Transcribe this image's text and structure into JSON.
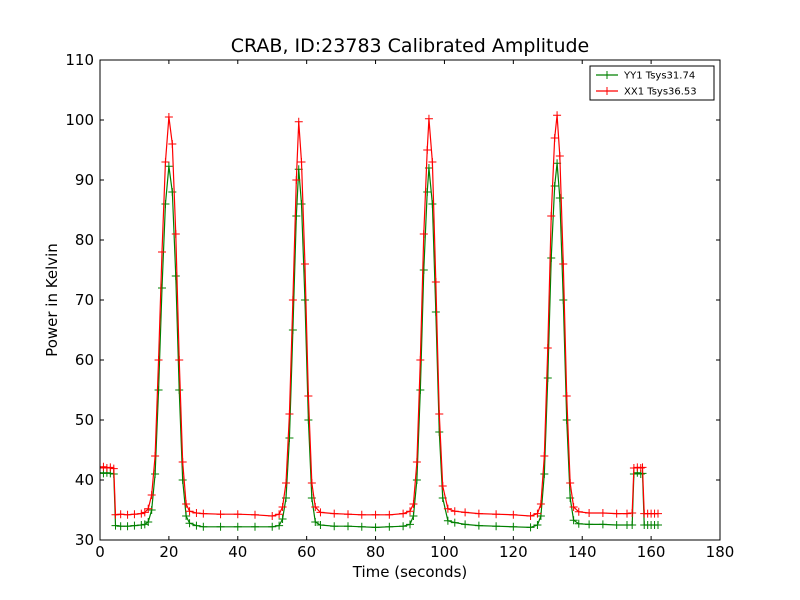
{
  "chart_data": {
    "type": "line",
    "title": "CRAB, ID:23783 Calibrated Amplitude",
    "xlabel": "Time (seconds)",
    "ylabel": "Power in Kelvin",
    "xlim": [
      0,
      180
    ],
    "ylim": [
      30,
      110
    ],
    "xticks": [
      0,
      20,
      40,
      60,
      80,
      100,
      120,
      140,
      160,
      180
    ],
    "yticks": [
      30,
      40,
      50,
      60,
      70,
      80,
      90,
      100,
      110
    ],
    "grid": false,
    "legend_position": "top-right",
    "marker": "+",
    "series": [
      {
        "name": "YY1 Tsys31.74",
        "color": "#008000",
        "points": [
          [
            0,
            41.2
          ],
          [
            1,
            41.1
          ],
          [
            2,
            41.2
          ],
          [
            3,
            41.1
          ],
          [
            4,
            41.0
          ],
          [
            4.5,
            32.4
          ],
          [
            6,
            32.3
          ],
          [
            8,
            32.3
          ],
          [
            10,
            32.4
          ],
          [
            12,
            32.5
          ],
          [
            13,
            32.6
          ],
          [
            14,
            33.0
          ],
          [
            15,
            35.0
          ],
          [
            16,
            41.0
          ],
          [
            17,
            55.0
          ],
          [
            18,
            72.0
          ],
          [
            19,
            86.0
          ],
          [
            20,
            92.3
          ],
          [
            21,
            88.0
          ],
          [
            22,
            74.0
          ],
          [
            23,
            55.0
          ],
          [
            24,
            40.0
          ],
          [
            25,
            34.0
          ],
          [
            26,
            32.8
          ],
          [
            28,
            32.4
          ],
          [
            30,
            32.2
          ],
          [
            35,
            32.2
          ],
          [
            40,
            32.2
          ],
          [
            45,
            32.2
          ],
          [
            50,
            32.2
          ],
          [
            52,
            32.4
          ],
          [
            53,
            33.5
          ],
          [
            54,
            37.0
          ],
          [
            55,
            47.0
          ],
          [
            56,
            65.0
          ],
          [
            57,
            84.0
          ],
          [
            57.7,
            91.8
          ],
          [
            58.5,
            86.0
          ],
          [
            59.5,
            70.0
          ],
          [
            60.5,
            50.0
          ],
          [
            61.5,
            37.0
          ],
          [
            62.5,
            33.0
          ],
          [
            64,
            32.5
          ],
          [
            68,
            32.3
          ],
          [
            72,
            32.3
          ],
          [
            76,
            32.2
          ],
          [
            80,
            32.1
          ],
          [
            84,
            32.2
          ],
          [
            88,
            32.3
          ],
          [
            90,
            32.6
          ],
          [
            91,
            34.0
          ],
          [
            92,
            40.0
          ],
          [
            93,
            55.0
          ],
          [
            94,
            75.0
          ],
          [
            95,
            88.0
          ],
          [
            95.5,
            92.0
          ],
          [
            96.5,
            86.0
          ],
          [
            97.5,
            68.0
          ],
          [
            98.5,
            48.0
          ],
          [
            99.5,
            37.0
          ],
          [
            101,
            33.2
          ],
          [
            103,
            32.9
          ],
          [
            106,
            32.6
          ],
          [
            110,
            32.4
          ],
          [
            115,
            32.3
          ],
          [
            120,
            32.2
          ],
          [
            125,
            32.1
          ],
          [
            127,
            32.5
          ],
          [
            128,
            34.0
          ],
          [
            129,
            41.0
          ],
          [
            130,
            57.0
          ],
          [
            131,
            77.0
          ],
          [
            132,
            89.0
          ],
          [
            132.7,
            92.8
          ],
          [
            133.5,
            87.0
          ],
          [
            134.5,
            70.0
          ],
          [
            135.5,
            50.0
          ],
          [
            136.5,
            37.0
          ],
          [
            137.5,
            33.3
          ],
          [
            139,
            32.7
          ],
          [
            142,
            32.6
          ],
          [
            146,
            32.6
          ],
          [
            150,
            32.5
          ],
          [
            153,
            32.5
          ],
          [
            154.5,
            32.5
          ],
          [
            155,
            41.0
          ],
          [
            156,
            41.2
          ],
          [
            157,
            41.0
          ],
          [
            157.5,
            41.1
          ],
          [
            158,
            32.5
          ],
          [
            159,
            32.5
          ],
          [
            160,
            32.5
          ],
          [
            161,
            32.5
          ],
          [
            162,
            32.5
          ]
        ]
      },
      {
        "name": "XX1 Tsys36.53",
        "color": "#ff0000",
        "points": [
          [
            0,
            42.0
          ],
          [
            1,
            42.2
          ],
          [
            2,
            42.0
          ],
          [
            3,
            42.1
          ],
          [
            4,
            41.9
          ],
          [
            4.5,
            34.2
          ],
          [
            6,
            34.3
          ],
          [
            8,
            34.2
          ],
          [
            10,
            34.3
          ],
          [
            12,
            34.4
          ],
          [
            13,
            34.6
          ],
          [
            14,
            35.2
          ],
          [
            15,
            37.5
          ],
          [
            16,
            44.0
          ],
          [
            17,
            60.0
          ],
          [
            18,
            78.0
          ],
          [
            19,
            93.0
          ],
          [
            20,
            100.5
          ],
          [
            21,
            96.0
          ],
          [
            22,
            81.0
          ],
          [
            23,
            60.0
          ],
          [
            24,
            43.0
          ],
          [
            25,
            36.0
          ],
          [
            26,
            34.8
          ],
          [
            28,
            34.5
          ],
          [
            30,
            34.4
          ],
          [
            35,
            34.3
          ],
          [
            40,
            34.3
          ],
          [
            45,
            34.2
          ],
          [
            50,
            34.0
          ],
          [
            52,
            34.3
          ],
          [
            53,
            35.5
          ],
          [
            54,
            39.5
          ],
          [
            55,
            51.0
          ],
          [
            56,
            70.0
          ],
          [
            57,
            90.0
          ],
          [
            57.7,
            99.7
          ],
          [
            58.5,
            93.0
          ],
          [
            59.5,
            76.0
          ],
          [
            60.5,
            54.0
          ],
          [
            61.5,
            39.5
          ],
          [
            62.5,
            35.5
          ],
          [
            64,
            34.6
          ],
          [
            68,
            34.4
          ],
          [
            72,
            34.3
          ],
          [
            76,
            34.2
          ],
          [
            80,
            34.2
          ],
          [
            84,
            34.2
          ],
          [
            88,
            34.4
          ],
          [
            90,
            34.8
          ],
          [
            91,
            36.0
          ],
          [
            92,
            43.0
          ],
          [
            93,
            60.0
          ],
          [
            94,
            81.0
          ],
          [
            95,
            95.0
          ],
          [
            95.5,
            100.2
          ],
          [
            96.5,
            93.0
          ],
          [
            97.5,
            73.0
          ],
          [
            98.5,
            51.0
          ],
          [
            99.5,
            39.0
          ],
          [
            101,
            35.2
          ],
          [
            103,
            34.8
          ],
          [
            106,
            34.6
          ],
          [
            110,
            34.4
          ],
          [
            115,
            34.3
          ],
          [
            120,
            34.2
          ],
          [
            125,
            34.0
          ],
          [
            127,
            34.4
          ],
          [
            128,
            36.0
          ],
          [
            129,
            44.0
          ],
          [
            130,
            62.0
          ],
          [
            131,
            84.0
          ],
          [
            132,
            97.0
          ],
          [
            132.7,
            100.8
          ],
          [
            133.5,
            94.0
          ],
          [
            134.5,
            76.0
          ],
          [
            135.5,
            54.0
          ],
          [
            136.5,
            39.5
          ],
          [
            137.5,
            35.5
          ],
          [
            139,
            34.7
          ],
          [
            142,
            34.5
          ],
          [
            146,
            34.5
          ],
          [
            150,
            34.4
          ],
          [
            153,
            34.4
          ],
          [
            154.5,
            34.5
          ],
          [
            155,
            42.0
          ],
          [
            156,
            42.1
          ],
          [
            157,
            42.0
          ],
          [
            157.5,
            42.1
          ],
          [
            158,
            34.4
          ],
          [
            159,
            34.4
          ],
          [
            160,
            34.4
          ],
          [
            161,
            34.4
          ],
          [
            162,
            34.4
          ]
        ]
      }
    ]
  }
}
